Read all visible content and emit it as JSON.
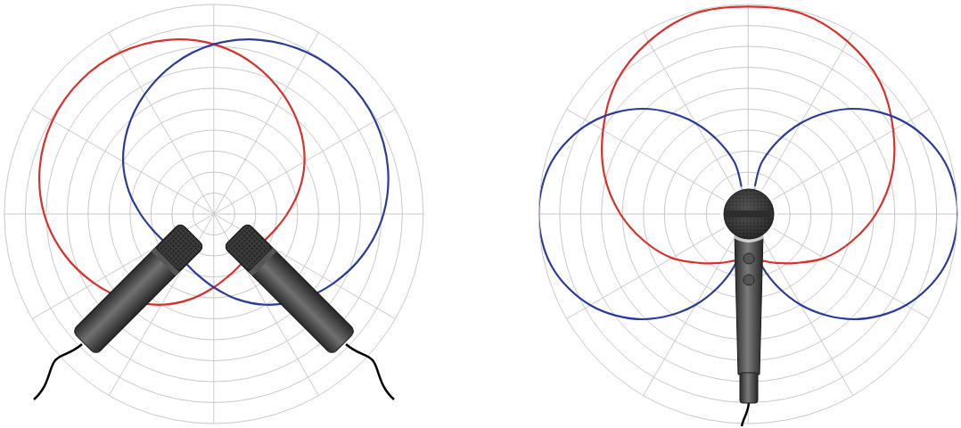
{
  "chart_data": [
    {
      "type": "polar",
      "x": [
        0,
        15,
        30,
        45,
        60,
        75,
        90,
        105,
        120,
        135,
        150,
        165,
        180,
        195,
        210,
        225,
        240,
        255,
        270,
        285,
        300,
        315,
        330,
        345,
        360
      ],
      "series": [
        {
          "color": "#d8302a",
          "values": [
            0.35,
            0.42,
            0.5,
            0.58,
            0.66,
            0.74,
            0.81,
            0.86,
            0.89,
            0.9,
            0.89,
            0.86,
            0.81,
            0.74,
            0.66,
            0.58,
            0.5,
            0.42,
            0.35,
            0.3,
            0.27,
            0.26,
            0.27,
            0.3,
            0.35
          ]
        },
        {
          "color": "#2b3b98",
          "values": [
            0.81,
            0.86,
            0.89,
            0.9,
            0.89,
            0.86,
            0.81,
            0.74,
            0.66,
            0.58,
            0.5,
            0.42,
            0.35,
            0.3,
            0.27,
            0.26,
            0.27,
            0.3,
            0.35,
            0.42,
            0.5,
            0.58,
            0.66,
            0.74,
            0.81
          ]
        }
      ],
      "xlim": [
        0,
        360
      ],
      "xticks": [
        0,
        30,
        60,
        90,
        120,
        150,
        180,
        210,
        240,
        270,
        300,
        330
      ],
      "ylim": [
        0,
        1
      ],
      "yticks": [
        0.1,
        0.2,
        0.3,
        0.4,
        0.5,
        0.6,
        0.7,
        0.8,
        0.9,
        1
      ],
      "grid": true,
      "tick_labels": false
    },
    {
      "type": "polar",
      "x": [
        0,
        15,
        30,
        45,
        60,
        75,
        90,
        105,
        120,
        135,
        150,
        165,
        180,
        195,
        210,
        225,
        240,
        255,
        270,
        285,
        300,
        315,
        330,
        345,
        360
      ],
      "series": [
        {
          "color": "#d8302a",
          "values": [
            0.61,
            0.71,
            0.8,
            0.89,
            0.95,
            0.99,
            0.99,
            0.99,
            0.95,
            0.89,
            0.8,
            0.71,
            0.61,
            0.51,
            0.42,
            0.33,
            0.27,
            0.23,
            0.22,
            0.23,
            0.27,
            0.33,
            0.42,
            0.51,
            0.61
          ]
        },
        {
          "color": "#2b3b98",
          "values": [
            1,
            0.97,
            0.87,
            0.71,
            0.5,
            0.26,
            0,
            0.26,
            0.5,
            0.71,
            0.87,
            0.97,
            1,
            0.97,
            0.87,
            0.71,
            0.5,
            0.26,
            0,
            0.26,
            0.5,
            0.71,
            0.87,
            0.97,
            1
          ]
        }
      ],
      "xlim": [
        0,
        360
      ],
      "xticks": [
        0,
        30,
        60,
        90,
        120,
        150,
        180,
        210,
        240,
        270,
        300,
        330
      ],
      "ylim": [
        0,
        1
      ],
      "yticks": [
        0.1,
        0.2,
        0.3,
        0.4,
        0.5,
        0.6,
        0.7,
        0.8,
        0.9,
        1
      ],
      "grid": true,
      "tick_labels": false
    }
  ]
}
